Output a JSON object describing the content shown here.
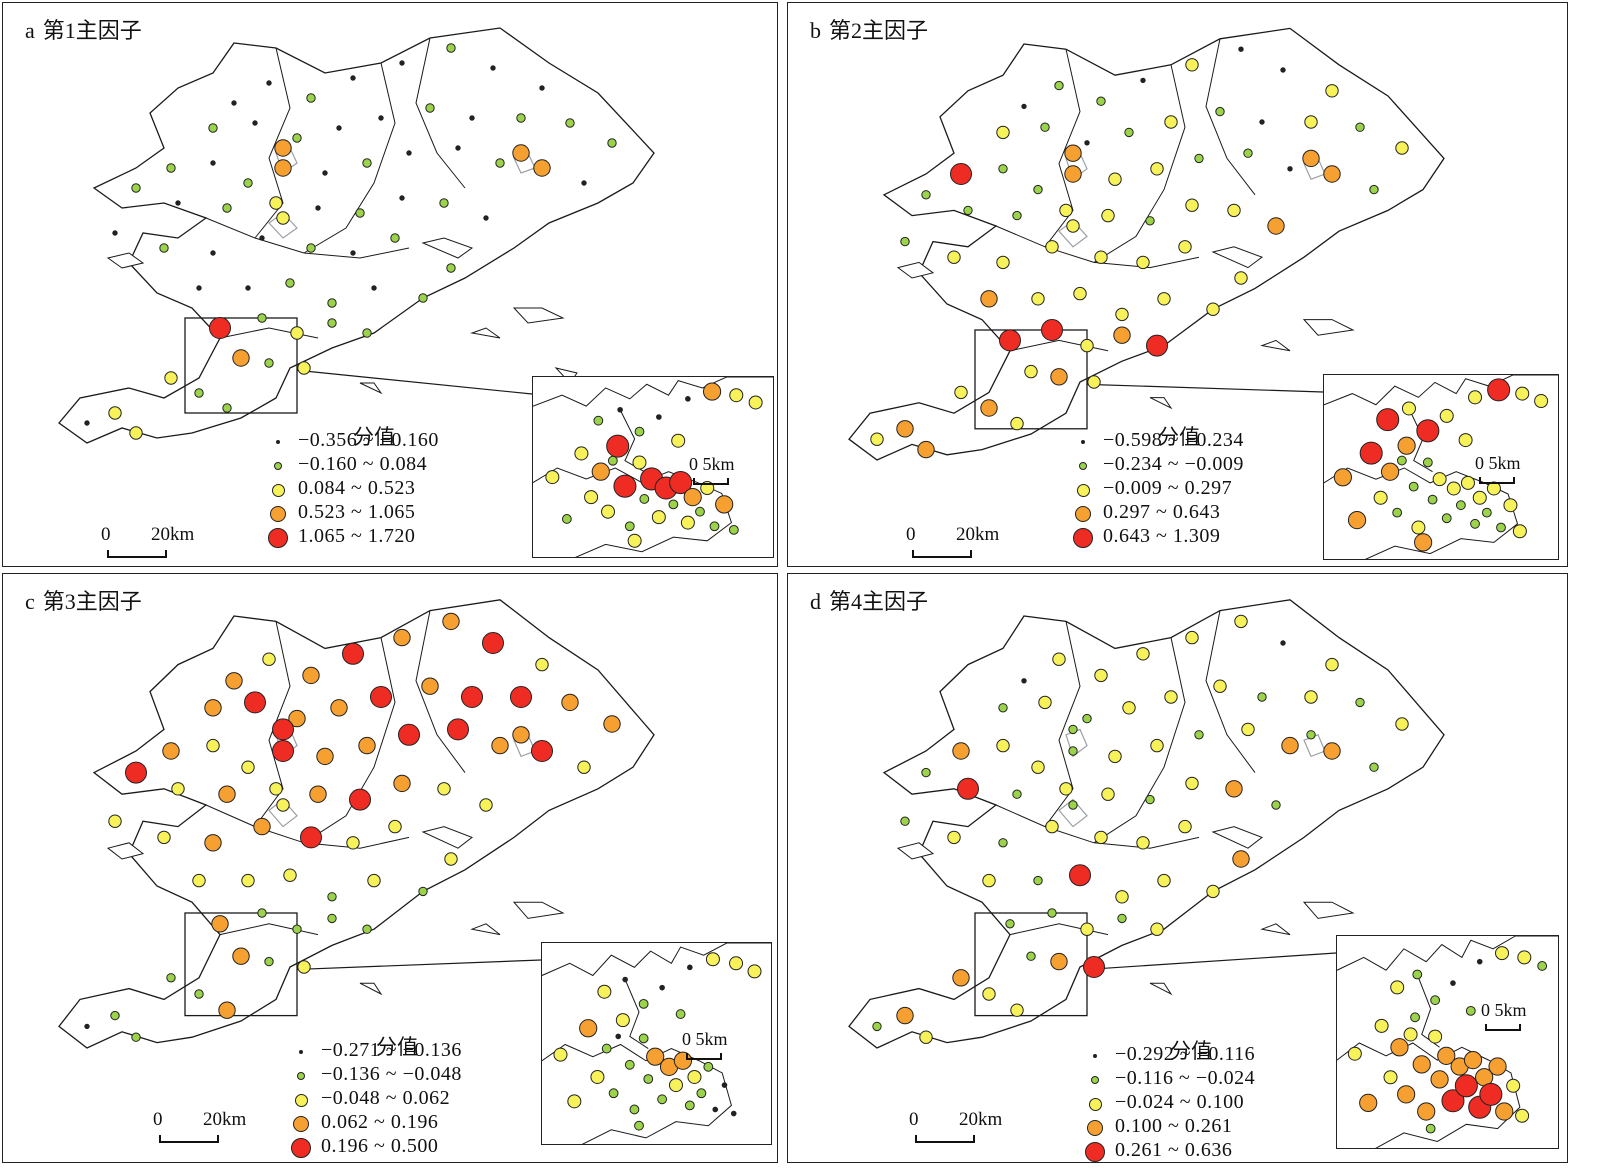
{
  "colors": {
    "lowest": "#222222",
    "low": "#9bd44a",
    "mid": "#f7f25a",
    "high": "#f5a031",
    "highest": "#ee2c24",
    "outline": "#222222",
    "urban": "#9aa0a6"
  },
  "legend_title": "分值",
  "panels": [
    {
      "letter": "a",
      "title": "第1主因子",
      "legend": [
        {
          "range": "−0.356 ~ −0.160",
          "class": "lowest"
        },
        {
          "range": "−0.160 ~ 0.084",
          "class": "low"
        },
        {
          "range": "0.084 ~ 0.523",
          "class": "mid"
        },
        {
          "range": "0.523 ~ 1.065",
          "class": "high"
        },
        {
          "range": "1.065 ~ 1.720",
          "class": "highest"
        }
      ],
      "scale": {
        "zero": "0",
        "dist": "20km"
      },
      "inset_scale": {
        "zero": "0",
        "dist": "5km"
      }
    },
    {
      "letter": "b",
      "title": "第2主因子",
      "legend": [
        {
          "range": "−0.598 ~ −0.234",
          "class": "lowest"
        },
        {
          "range": "−0.234 ~ −0.009",
          "class": "low"
        },
        {
          "range": "−0.009 ~ 0.297",
          "class": "mid"
        },
        {
          "range": "0.297 ~ 0.643",
          "class": "high"
        },
        {
          "range": "0.643 ~ 1.309",
          "class": "highest"
        }
      ],
      "scale": {
        "zero": "0",
        "dist": "20km"
      },
      "inset_scale": {
        "zero": "0",
        "dist": "5km"
      }
    },
    {
      "letter": "c",
      "title": "第3主因子",
      "legend": [
        {
          "range": "−0.271 ~ −0.136",
          "class": "lowest"
        },
        {
          "range": "−0.136 ~ −0.048",
          "class": "low"
        },
        {
          "range": "−0.048 ~ 0.062",
          "class": "mid"
        },
        {
          "range": "0.062 ~ 0.196",
          "class": "high"
        },
        {
          "range": "0.196 ~ 0.500",
          "class": "highest"
        }
      ],
      "scale": {
        "zero": "0",
        "dist": "20km"
      },
      "inset_scale": {
        "zero": "0",
        "dist": "5km"
      }
    },
    {
      "letter": "d",
      "title": "第4主因子",
      "legend": [
        {
          "range": "−0.292 ~ −0.116",
          "class": "lowest"
        },
        {
          "range": "−0.116 ~ −0.024",
          "class": "low"
        },
        {
          "range": "−0.024 ~ 0.100",
          "class": "mid"
        },
        {
          "range": "0.100 ~ 0.261",
          "class": "high"
        },
        {
          "range": "0.261 ~ 0.636",
          "class": "highest"
        }
      ],
      "scale": {
        "zero": "0",
        "dist": "20km"
      },
      "inset_scale": {
        "zero": "0",
        "dist": "5km"
      }
    }
  ]
}
